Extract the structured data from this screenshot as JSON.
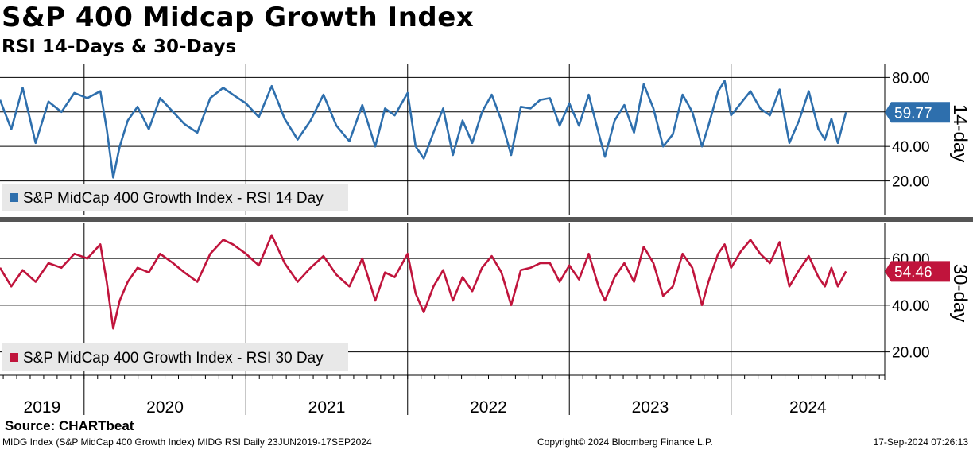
{
  "title": "S&P 400 Midcap Growth Index",
  "subtitle": "RSI 14-Days & 30-Days",
  "source": "Source: CHARTbeat",
  "footer": {
    "left": "MIDG Index (S&P MidCap 400 Growth Index) MIDG RSI  Daily 23JUN2019-17SEP2024",
    "middle": "Copyright© 2024 Bloomberg Finance L.P.",
    "right": "17-Sep-2024 07:26:13"
  },
  "colors": {
    "rsi14": "#2e6fad",
    "rsi30": "#c0143c",
    "grid": "#000000",
    "legend_bg": "#e8e8e8"
  },
  "chart_data": [
    {
      "type": "line",
      "panel": "top",
      "ylabel": "14-day",
      "ylim": [
        0,
        88
      ],
      "yticks": [
        "80.00",
        "60.00",
        "40.00",
        "20.00"
      ],
      "ytick_values": [
        80,
        60,
        40,
        20
      ],
      "last_value": 59.77,
      "last_value_label": "59.77",
      "legend": {
        "label": "S&P MidCap 400 Growth Index - RSI 14 Day",
        "placement": "bottom-left"
      },
      "series": [
        {
          "name": "S&P MidCap 400 Growth Index - RSI 14 Day",
          "x": [
            2019.48,
            2019.55,
            2019.62,
            2019.7,
            2019.78,
            2019.86,
            2019.94,
            2020.02,
            2020.1,
            2020.14,
            2020.18,
            2020.22,
            2020.27,
            2020.33,
            2020.4,
            2020.47,
            2020.55,
            2020.62,
            2020.7,
            2020.78,
            2020.86,
            2020.92,
            2021.0,
            2021.08,
            2021.16,
            2021.24,
            2021.32,
            2021.4,
            2021.48,
            2021.56,
            2021.64,
            2021.72,
            2021.8,
            2021.86,
            2021.92,
            2022.0,
            2022.05,
            2022.1,
            2022.16,
            2022.22,
            2022.28,
            2022.34,
            2022.4,
            2022.46,
            2022.52,
            2022.58,
            2022.64,
            2022.7,
            2022.76,
            2022.82,
            2022.88,
            2022.94,
            2023.0,
            2023.06,
            2023.12,
            2023.18,
            2023.22,
            2023.28,
            2023.34,
            2023.4,
            2023.46,
            2023.52,
            2023.58,
            2023.64,
            2023.7,
            2023.76,
            2023.82,
            2023.86,
            2023.92,
            2023.96,
            2024.0,
            2024.06,
            2024.12,
            2024.18,
            2024.24,
            2024.3,
            2024.36,
            2024.42,
            2024.48,
            2024.54,
            2024.58,
            2024.62,
            2024.66,
            2024.71
          ],
          "values": [
            67,
            50,
            74,
            42,
            66,
            60,
            71,
            68,
            72,
            50,
            22,
            40,
            55,
            63,
            50,
            68,
            60,
            53,
            48,
            68,
            74,
            70,
            65,
            57,
            75,
            56,
            44,
            55,
            70,
            52,
            43,
            64,
            40,
            62,
            58,
            71,
            40,
            33,
            48,
            62,
            35,
            55,
            42,
            60,
            70,
            55,
            35,
            63,
            62,
            67,
            68,
            52,
            65,
            52,
            70,
            48,
            34,
            55,
            64,
            48,
            76,
            62,
            40,
            47,
            70,
            60,
            40,
            52,
            72,
            78,
            58,
            65,
            72,
            62,
            58,
            73,
            42,
            55,
            72,
            50,
            44,
            56,
            42,
            59.77
          ]
        }
      ]
    },
    {
      "type": "line",
      "panel": "bottom",
      "ylabel": "30-day",
      "ylim": [
        10,
        75
      ],
      "yticks": [
        "60.00",
        "40.00",
        "20.00"
      ],
      "ytick_values": [
        60,
        40,
        20
      ],
      "last_value": 54.46,
      "last_value_label": "54.46",
      "legend": {
        "label": "S&P MidCap 400 Growth Index - RSI 30 Day",
        "placement": "bottom-left"
      },
      "series": [
        {
          "name": "S&P MidCap 400 Growth Index - RSI 30 Day",
          "x": [
            2019.48,
            2019.55,
            2019.62,
            2019.7,
            2019.78,
            2019.86,
            2019.94,
            2020.02,
            2020.1,
            2020.14,
            2020.18,
            2020.22,
            2020.27,
            2020.33,
            2020.4,
            2020.47,
            2020.55,
            2020.62,
            2020.7,
            2020.78,
            2020.86,
            2020.92,
            2021.0,
            2021.08,
            2021.16,
            2021.24,
            2021.32,
            2021.4,
            2021.48,
            2021.56,
            2021.64,
            2021.72,
            2021.8,
            2021.86,
            2021.92,
            2022.0,
            2022.05,
            2022.1,
            2022.16,
            2022.22,
            2022.28,
            2022.34,
            2022.4,
            2022.46,
            2022.52,
            2022.58,
            2022.64,
            2022.7,
            2022.76,
            2022.82,
            2022.88,
            2022.94,
            2023.0,
            2023.06,
            2023.12,
            2023.18,
            2023.22,
            2023.28,
            2023.34,
            2023.4,
            2023.46,
            2023.52,
            2023.58,
            2023.64,
            2023.7,
            2023.76,
            2023.82,
            2023.86,
            2023.92,
            2023.96,
            2024.0,
            2024.06,
            2024.12,
            2024.18,
            2024.24,
            2024.3,
            2024.36,
            2024.42,
            2024.48,
            2024.54,
            2024.58,
            2024.62,
            2024.66,
            2024.71
          ],
          "values": [
            56,
            48,
            55,
            50,
            58,
            56,
            62,
            60,
            66,
            50,
            30,
            42,
            50,
            56,
            54,
            62,
            58,
            54,
            50,
            62,
            68,
            66,
            62,
            57,
            70,
            58,
            50,
            56,
            61,
            53,
            48,
            60,
            42,
            54,
            52,
            62,
            45,
            37,
            48,
            55,
            42,
            52,
            46,
            56,
            61,
            54,
            40,
            55,
            56,
            58,
            58,
            50,
            57,
            51,
            62,
            48,
            42,
            52,
            58,
            50,
            65,
            58,
            44,
            48,
            62,
            56,
            40,
            50,
            62,
            66,
            56,
            63,
            68,
            62,
            58,
            67,
            48,
            55,
            61,
            52,
            48,
            56,
            48,
            54.46
          ]
        }
      ]
    }
  ],
  "x_axis": {
    "year_labels": [
      "2019",
      "2020",
      "2021",
      "2022",
      "2023",
      "2024"
    ],
    "year_starts": [
      2020,
      2021,
      2022,
      2023,
      2024
    ],
    "xlim": [
      2019.48,
      2024.95
    ]
  }
}
